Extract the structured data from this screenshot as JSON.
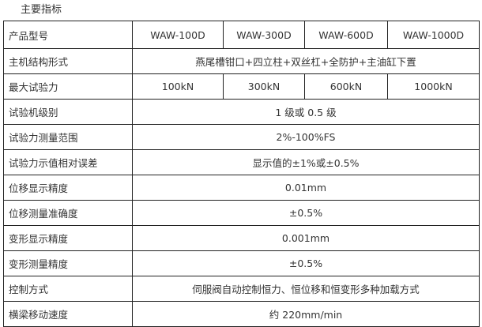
{
  "title": "主要指标",
  "models_label": "产品型号",
  "models": [
    "WAW-100D",
    "WAW-300D",
    "WAW-600D",
    "WAW-1000D"
  ],
  "structure_label": "主机结构形式",
  "structure": "燕尾槽钳口+四立柱+双丝杠+全防护+主油缸下置",
  "max_force_label": "最大试验力",
  "max_force": [
    "100kN",
    "300kN",
    "600kN",
    "1000kN"
  ],
  "rows": [
    {
      "label": "试验机级别",
      "value": "1 级或 0.5 级"
    },
    {
      "label": "试验力测量范围",
      "value": "2%-100%FS"
    },
    {
      "label": "试验力示值相对误差",
      "value": "显示值的±1%或±0.5%"
    },
    {
      "label": "位移显示精度",
      "value": "0.01mm"
    },
    {
      "label": "位移测量准确度",
      "value": "±0.5%"
    },
    {
      "label": "变形显示精度",
      "value": "0.001mm"
    },
    {
      "label": "变形测量精度",
      "value": "±0.5%"
    },
    {
      "label": "控制方式",
      "value": "伺服阀自动控制恒力、恒位移和恒变形多种加载方式"
    },
    {
      "label": "横梁移动速度",
      "value": "约 220mm/min"
    }
  ]
}
